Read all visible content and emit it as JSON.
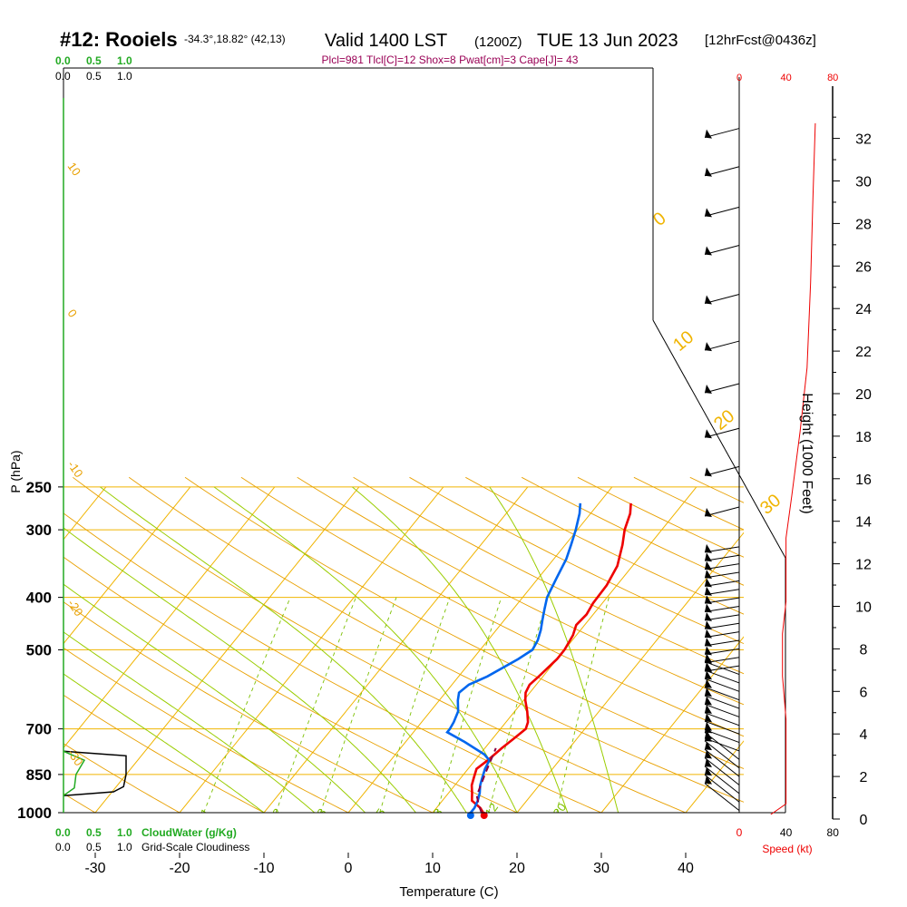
{
  "header": {
    "station": "#12: Rooiels",
    "coords": "-34.3°,18.82° (42,13)",
    "valid": "Valid 1400 LST",
    "utc": "(1200Z)",
    "date": "TUE 13 Jun 2023",
    "forecast": "[12hrFcst@0436z]"
  },
  "indices": "Plcl=981 Tlcl[C]=12 Shox=8 Pwat[cm]=3 Cape[J]= 43",
  "colors": {
    "isotherm": "#f0b400",
    "dry_adiabat": "#e8a000",
    "moist_adiabat": "#9acd00",
    "mixing_ratio": "#7cc000",
    "temperature": "#ee0000",
    "dewpoint": "#0066ee",
    "parcel": "#880044",
    "cloud_water": "#22aa22",
    "indices": "#990055",
    "speed": "#ee0000"
  },
  "chart_data": {
    "type": "line",
    "xlabel": "Temperature (C)",
    "ylabel": "P (hPa)",
    "right_label": "Height (1000 Feet)",
    "xlim": [
      -35,
      35
    ],
    "ylim": [
      1000,
      250
    ],
    "pressure_ticks": [
      "250",
      "300",
      "400",
      "500",
      "700",
      "850",
      "1000"
    ],
    "x_ticks": [
      "-30",
      "-20",
      "-10",
      "0",
      "10",
      "20",
      "30",
      "40"
    ],
    "height_ticks": [
      "0",
      "2",
      "4",
      "6",
      "8",
      "10",
      "12",
      "14",
      "16",
      "18",
      "20",
      "22",
      "24",
      "26",
      "28",
      "30",
      "32"
    ],
    "dry_adiabat_labels": [
      "10",
      "0",
      "-10",
      "-20",
      "-30"
    ],
    "theta_labels": [
      "0",
      "10",
      "20",
      "30"
    ],
    "mixing_ratio_labels": [
      "1",
      "2",
      "3",
      "5",
      "8",
      "12",
      "20"
    ],
    "series": [
      {
        "key": "temperature",
        "points": [
          [
            16,
            1000
          ],
          [
            15.2,
            980
          ],
          [
            13.5,
            950
          ],
          [
            12.8,
            920
          ],
          [
            12,
            890
          ],
          [
            11.5,
            860
          ],
          [
            11,
            830
          ],
          [
            11.5,
            800
          ],
          [
            12,
            760
          ],
          [
            12.5,
            730
          ],
          [
            13,
            700
          ],
          [
            12.6,
            680
          ],
          [
            11.5,
            650
          ],
          [
            10.2,
            620
          ],
          [
            9.5,
            600
          ],
          [
            9.2,
            580
          ],
          [
            9.5,
            560
          ],
          [
            10,
            520
          ],
          [
            10,
            500
          ],
          [
            9.6,
            470
          ],
          [
            9,
            450
          ],
          [
            9.2,
            430
          ],
          [
            8.9,
            410
          ],
          [
            8.8,
            380
          ],
          [
            8.2,
            350
          ],
          [
            6.8,
            320
          ],
          [
            5.6,
            300
          ],
          [
            4.7,
            280
          ],
          [
            3.8,
            268
          ]
        ]
      },
      {
        "key": "dewpoint",
        "points": [
          [
            14.5,
            1000
          ],
          [
            14.5,
            980
          ],
          [
            14.2,
            950
          ],
          [
            13.7,
            920
          ],
          [
            13,
            890
          ],
          [
            12.5,
            860
          ],
          [
            12,
            830
          ],
          [
            11.7,
            800
          ],
          [
            10.5,
            780
          ],
          [
            7,
            740
          ],
          [
            4,
            710
          ],
          [
            4,
            700
          ],
          [
            3.8,
            680
          ],
          [
            3.3,
            650
          ],
          [
            2.2,
            620
          ],
          [
            1.6,
            600
          ],
          [
            2,
            580
          ],
          [
            3.4,
            560
          ],
          [
            5.4,
            520
          ],
          [
            6.2,
            500
          ],
          [
            5.9,
            480
          ],
          [
            5.3,
            460
          ],
          [
            4.5,
            440
          ],
          [
            3.7,
            420
          ],
          [
            2.9,
            400
          ],
          [
            2.2,
            370
          ],
          [
            1.5,
            340
          ],
          [
            0.7,
            320
          ],
          [
            -0.2,
            300
          ],
          [
            -1.3,
            280
          ],
          [
            -2.2,
            268
          ]
        ]
      },
      {
        "key": "parcel",
        "dashed": true,
        "points": [
          [
            15.8,
            1000
          ],
          [
            14.8,
            970
          ],
          [
            13.6,
            930
          ],
          [
            13.2,
            900
          ],
          [
            12.8,
            870
          ],
          [
            12.4,
            840
          ],
          [
            12,
            810
          ],
          [
            11.6,
            780
          ],
          [
            11.3,
            760
          ]
        ]
      }
    ],
    "surface_points": {
      "temperature": 16.1,
      "dewpoint": 14.5
    },
    "wind_speed": {
      "label": "Speed (kt)",
      "axis_ticks": [
        "0",
        "40",
        "80",
        "120"
      ],
      "xlim": [
        0,
        120
      ],
      "points": [
        [
          27,
          0
        ],
        [
          40,
          0.5
        ],
        [
          40,
          2
        ],
        [
          40,
          4.5
        ],
        [
          37,
          6.5
        ],
        [
          37,
          8.5
        ],
        [
          40,
          10
        ],
        [
          40,
          12
        ],
        [
          40,
          13
        ],
        [
          45,
          15
        ],
        [
          52,
          18
        ],
        [
          58,
          21
        ],
        [
          61,
          25
        ],
        [
          63,
          29
        ],
        [
          65,
          32.5
        ]
      ]
    },
    "wind_barbs": {
      "heights": [
        32.3,
        30.5,
        28.6,
        26.8,
        24.5,
        22.3,
        20.3,
        18.2,
        16.4,
        14.5,
        12.8,
        12.4,
        12,
        11.6,
        11.2,
        10.8,
        10.4,
        10,
        9.6,
        9.2,
        8.8,
        8.4,
        8,
        7.6,
        7.2,
        6.8,
        6.4,
        6,
        5.6,
        5.2,
        4.8,
        4.4,
        4,
        3.6,
        3.2,
        2.8,
        2.4,
        2,
        1.6,
        1.2,
        0.8,
        0.4
      ]
    },
    "bottom_scales": {
      "cloud_water": {
        "ticks": [
          "0.0",
          "0.5",
          "1.0"
        ],
        "label": "CloudWater (g/Kg)"
      },
      "cloudiness": {
        "ticks": [
          "0.0",
          "0.5",
          "1.0"
        ],
        "label": "Grid-Scale Cloudiness"
      },
      "top_cloud_water_ticks": [
        "0.0",
        "0.5",
        "1.0"
      ],
      "top_cloudiness_ticks": [
        "0.0",
        "0.5",
        "1.0"
      ]
    },
    "cloudiness_profile": [
      [
        0.0,
        770
      ],
      [
        0.75,
        785
      ],
      [
        0.75,
        850
      ],
      [
        0.72,
        895
      ],
      [
        0.6,
        915
      ],
      [
        0.0,
        930
      ]
    ],
    "cloud_water_profile": [
      [
        0.0,
        770
      ],
      [
        0.25,
        800
      ],
      [
        0.15,
        850
      ],
      [
        0.13,
        900
      ],
      [
        0.0,
        930
      ]
    ]
  }
}
